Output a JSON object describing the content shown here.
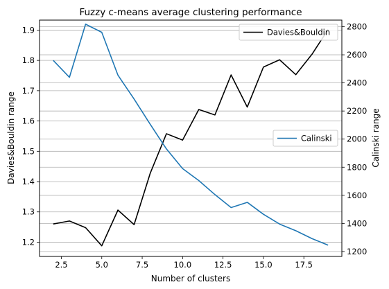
{
  "chart_data": {
    "type": "line",
    "title": "Fuzzy c-means average clustering performance",
    "xlabel": "Number of clusters",
    "ylabel_left": "Davies&Bouldin range",
    "ylabel_right": "Calinski range",
    "x": [
      2,
      3,
      4,
      5,
      6,
      7,
      8,
      9,
      10,
      11,
      12,
      13,
      14,
      15,
      16,
      17,
      18,
      19
    ],
    "xlim": [
      1.15,
      19.85
    ],
    "xticks": [
      2.5,
      5.0,
      7.5,
      10.0,
      12.5,
      15.0,
      17.5
    ],
    "xtick_labels": [
      "2.5",
      "5.0",
      "7.5",
      "10.0",
      "12.5",
      "15.0",
      "17.5"
    ],
    "ylim_left": [
      1.153,
      1.933
    ],
    "yticks_left": [
      1.2,
      1.3,
      1.4,
      1.5,
      1.6,
      1.7,
      1.8,
      1.9
    ],
    "ytick_labels_left": [
      "1.2",
      "1.3",
      "1.4",
      "1.5",
      "1.6",
      "1.7",
      "1.8",
      "1.9"
    ],
    "ylim_right": [
      1165,
      2847
    ],
    "yticks_right": [
      1200,
      1400,
      1600,
      1800,
      2000,
      2200,
      2400,
      2600,
      2800
    ],
    "ytick_labels_right": [
      "1200",
      "1400",
      "1600",
      "1800",
      "2000",
      "2200",
      "2400",
      "2600",
      "2800"
    ],
    "grid": "horizontal, both y axes",
    "series": [
      {
        "name": "Davies&Bouldin",
        "axis": "left",
        "color": "#000000",
        "values": [
          1.26,
          1.27,
          1.248,
          1.188,
          1.306,
          1.258,
          1.428,
          1.558,
          1.537,
          1.638,
          1.62,
          1.752,
          1.646,
          1.778,
          1.802,
          1.753,
          1.82,
          1.902
        ],
        "legend_position": "upper-right"
      },
      {
        "name": "Calinski",
        "axis": "right",
        "color": "#1f77b4",
        "values": [
          2560,
          2440,
          2818,
          2760,
          2455,
          2285,
          2105,
          1930,
          1790,
          1705,
          1605,
          1513,
          1550,
          1465,
          1395,
          1348,
          1292,
          1245
        ],
        "legend_position": "center-right"
      }
    ]
  }
}
